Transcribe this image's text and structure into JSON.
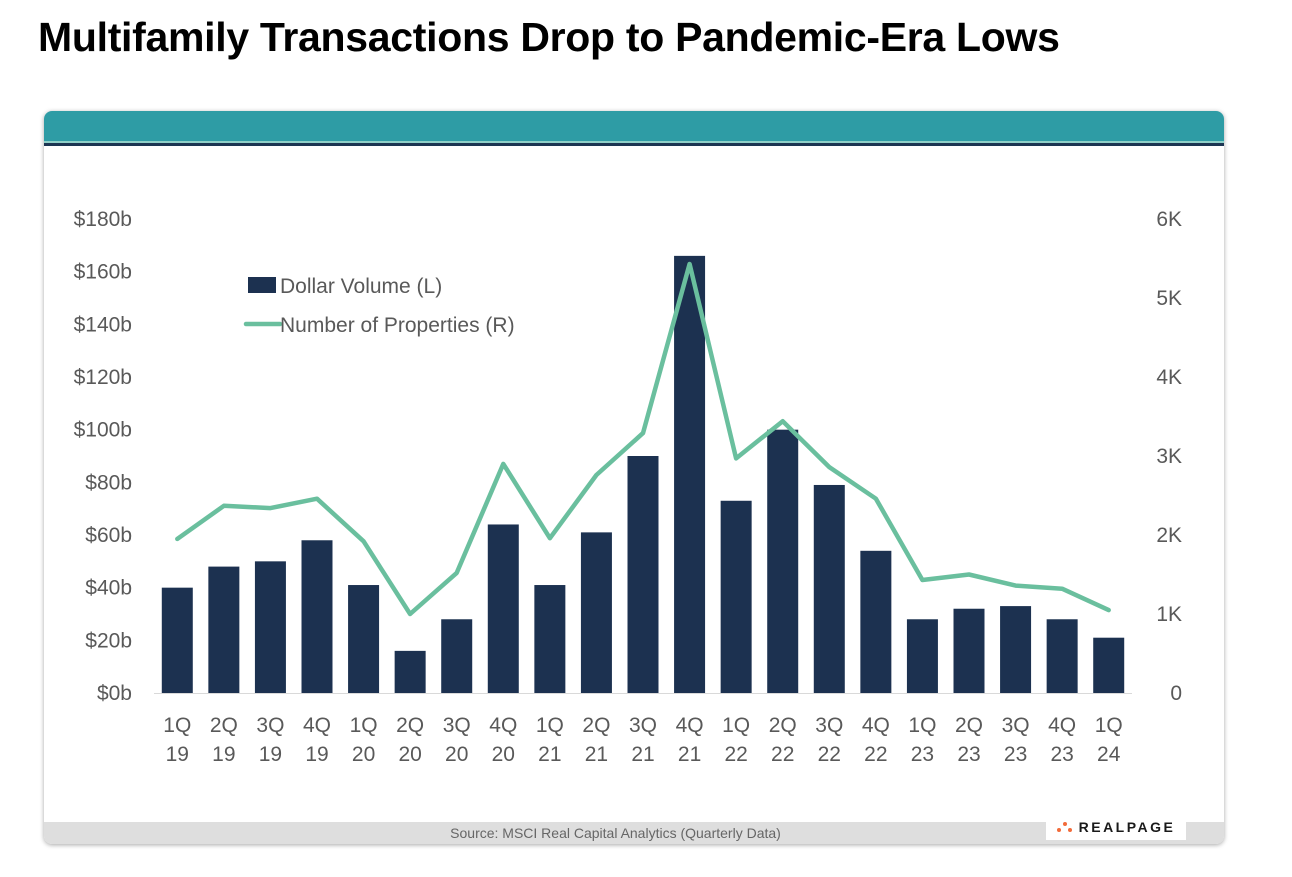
{
  "page": {
    "title": "Multifamily Transactions Drop to Pandemic-Era Lows",
    "source": "Source: MSCI Real Capital Analytics (Quarterly Data)",
    "logo_text": "REALPAGE",
    "logo_icon": "dots-logo-icon"
  },
  "colors": {
    "bar": "#1c3150",
    "line": "#6abf9e",
    "header_band": "#2e9ca5",
    "axis_text": "#595959"
  },
  "chart_data": {
    "type": "bar",
    "categories": [
      [
        "1Q",
        "19"
      ],
      [
        "2Q",
        "19"
      ],
      [
        "3Q",
        "19"
      ],
      [
        "4Q",
        "19"
      ],
      [
        "1Q",
        "20"
      ],
      [
        "2Q",
        "20"
      ],
      [
        "3Q",
        "20"
      ],
      [
        "4Q",
        "20"
      ],
      [
        "1Q",
        "21"
      ],
      [
        "2Q",
        "21"
      ],
      [
        "3Q",
        "21"
      ],
      [
        "4Q",
        "21"
      ],
      [
        "1Q",
        "22"
      ],
      [
        "2Q",
        "22"
      ],
      [
        "3Q",
        "22"
      ],
      [
        "4Q",
        "22"
      ],
      [
        "1Q",
        "23"
      ],
      [
        "2Q",
        "23"
      ],
      [
        "3Q",
        "23"
      ],
      [
        "4Q",
        "23"
      ],
      [
        "1Q",
        "24"
      ]
    ],
    "series": [
      {
        "name": "Dollar Volume (L)",
        "type": "bar",
        "axis": "left",
        "values": [
          40,
          48,
          50,
          58,
          41,
          16,
          28,
          64,
          41,
          61,
          90,
          166,
          73,
          100,
          79,
          54,
          28,
          32,
          33,
          28,
          21
        ]
      },
      {
        "name": "Number of Properties (R)",
        "type": "line",
        "axis": "right",
        "values": [
          1950,
          2370,
          2340,
          2460,
          1920,
          1000,
          1520,
          2900,
          1960,
          2760,
          3290,
          5430,
          2970,
          3440,
          2860,
          2460,
          1430,
          1500,
          1360,
          1320,
          1050
        ]
      }
    ],
    "y_left": {
      "ticks": [
        "$0b",
        "$20b",
        "$40b",
        "$60b",
        "$80b",
        "$100b",
        "$120b",
        "$140b",
        "$160b",
        "$180b"
      ],
      "range": [
        0,
        180
      ]
    },
    "y_right": {
      "ticks": [
        "0",
        "1K",
        "2K",
        "3K",
        "4K",
        "5K",
        "6K"
      ],
      "range": [
        0,
        6000
      ]
    },
    "grid": false,
    "legend_position": "top-left"
  }
}
